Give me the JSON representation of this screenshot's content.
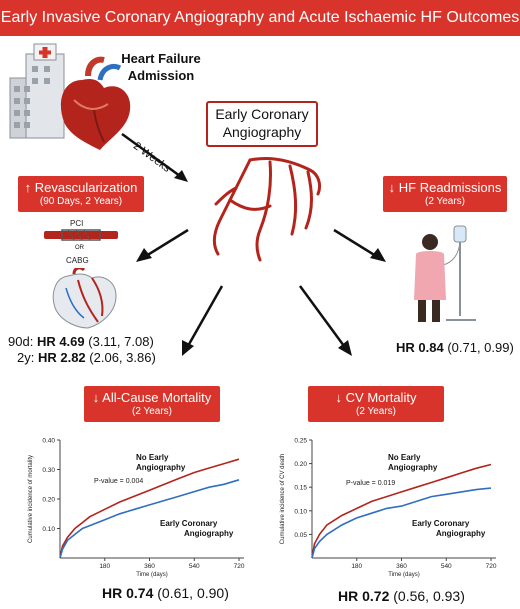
{
  "title": "Early Invasive Coronary Angiography and Acute Ischaemic HF Outcomes",
  "admission": {
    "line1": "Heart Failure",
    "line2": "Admission"
  },
  "two_weeks": "2 Weeks",
  "center_box": {
    "line1": "Early Coronary",
    "line2": "Angiography"
  },
  "revasc": {
    "arrow": "↑",
    "title": "Revascularization",
    "subtitle": "(90 Days, 2 Years)",
    "pci": "PCI",
    "or": "OR",
    "cabg": "CABG",
    "hr90_label": "90d:",
    "hr90_bold": "HR 4.69",
    "hr90_ci": "(3.11, 7.08)",
    "hr2y_label": "2y:",
    "hr2y_bold": "HR 2.82",
    "hr2y_ci": "(2.06, 3.86)"
  },
  "readmit": {
    "arrow": "↓",
    "title": "HF Readmissions",
    "subtitle": "(2 Years)",
    "hr_bold": "HR 0.84",
    "hr_ci": "(0.71, 0.99)"
  },
  "allcause": {
    "arrow": "↓",
    "title": "All-Cause Mortality",
    "subtitle": "(2 Years)",
    "hr_bold": "HR 0.74",
    "hr_ci": "(0.61, 0.90)"
  },
  "cv": {
    "arrow": "↓",
    "title": "CV Mortality",
    "subtitle": "(2 Years)",
    "hr_bold": "HR 0.72",
    "hr_ci": "(0.56, 0.93)"
  },
  "colors": {
    "red": "#d9342b",
    "dark_red": "#b3241c",
    "blue": "#2f6fc0"
  },
  "chart_data": [
    {
      "type": "line",
      "title": "",
      "xlabel": "Time (days)",
      "ylabel": "Cumulative incidence of mortality",
      "xlim": [
        0,
        740
      ],
      "ylim": [
        0,
        0.4
      ],
      "xticks": [
        180,
        360,
        540,
        720
      ],
      "yticks": [
        0.1,
        0.2,
        0.3,
        0.4
      ],
      "annotation": "P-value = 0.004",
      "series": [
        {
          "name": "No Early Angiography",
          "color": "#b3241c",
          "x": [
            0,
            10,
            30,
            60,
            90,
            120,
            180,
            240,
            300,
            360,
            420,
            480,
            540,
            600,
            660,
            720
          ],
          "y": [
            0,
            0.04,
            0.07,
            0.1,
            0.12,
            0.14,
            0.165,
            0.19,
            0.21,
            0.23,
            0.25,
            0.27,
            0.29,
            0.305,
            0.32,
            0.335
          ]
        },
        {
          "name": "Early Coronary Angiography",
          "color": "#2f6fc0",
          "x": [
            0,
            10,
            30,
            60,
            90,
            120,
            180,
            240,
            300,
            360,
            420,
            480,
            540,
            600,
            660,
            720
          ],
          "y": [
            0,
            0.03,
            0.06,
            0.08,
            0.1,
            0.11,
            0.13,
            0.15,
            0.165,
            0.18,
            0.195,
            0.21,
            0.225,
            0.24,
            0.25,
            0.265
          ]
        }
      ]
    },
    {
      "type": "line",
      "title": "",
      "xlabel": "Time (days)",
      "ylabel": "Cumulative incidence of CV death",
      "xlim": [
        0,
        740
      ],
      "ylim": [
        0,
        0.25
      ],
      "xticks": [
        180,
        360,
        540,
        720
      ],
      "yticks": [
        0.05,
        0.1,
        0.15,
        0.2,
        0.25
      ],
      "annotation": "P-value = 0.019",
      "series": [
        {
          "name": "No Early Angiography",
          "color": "#b3241c",
          "x": [
            0,
            10,
            30,
            60,
            90,
            120,
            180,
            240,
            300,
            360,
            420,
            480,
            540,
            600,
            660,
            720
          ],
          "y": [
            0,
            0.03,
            0.05,
            0.07,
            0.08,
            0.09,
            0.105,
            0.12,
            0.13,
            0.14,
            0.15,
            0.16,
            0.17,
            0.18,
            0.19,
            0.198
          ]
        },
        {
          "name": "Early Coronary Angiography",
          "color": "#2f6fc0",
          "x": [
            0,
            10,
            30,
            60,
            90,
            120,
            180,
            240,
            300,
            360,
            420,
            480,
            540,
            600,
            660,
            720
          ],
          "y": [
            0,
            0.02,
            0.035,
            0.05,
            0.06,
            0.07,
            0.085,
            0.095,
            0.105,
            0.11,
            0.12,
            0.13,
            0.135,
            0.14,
            0.145,
            0.148
          ]
        }
      ]
    }
  ]
}
